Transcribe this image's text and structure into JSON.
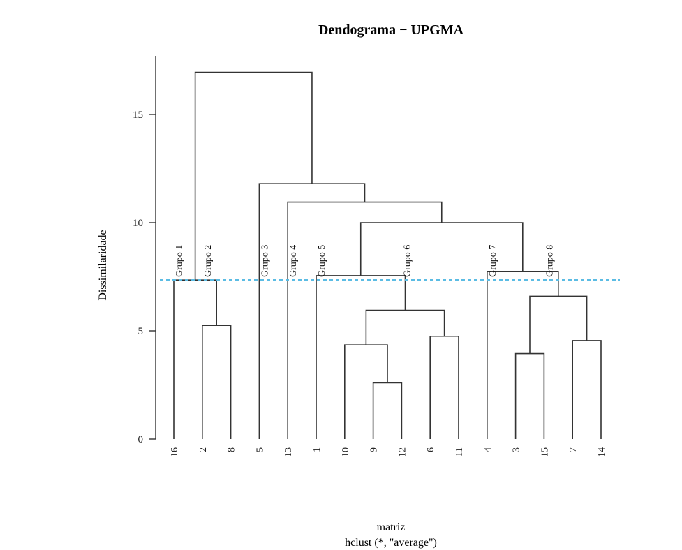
{
  "chart_data": {
    "type": "dendrogram",
    "title": "Dendograma − UPGMA",
    "ylabel": "Dissimilaridade",
    "xlabel": "matriz",
    "sub": "hclust (*, \"average\")",
    "ylim": [
      0,
      17
    ],
    "yticks": [
      0,
      5,
      10,
      15
    ],
    "leaves": [
      "16",
      "2",
      "8",
      "5",
      "13",
      "1",
      "10",
      "9",
      "12",
      "6",
      "11",
      "4",
      "3",
      "15",
      "7",
      "14"
    ],
    "merges": [
      {
        "left": "9",
        "right": "12",
        "height": 2.6
      },
      {
        "left": "3",
        "right": "15",
        "height": 3.95
      },
      {
        "left": "10",
        "right": "9+12",
        "height": 4.35
      },
      {
        "left": "7",
        "right": "14",
        "height": 4.55
      },
      {
        "left": "6",
        "right": "11",
        "height": 4.75
      },
      {
        "left": "2",
        "right": "8",
        "height": 5.25
      },
      {
        "left": "10+9+12",
        "right": "6+11",
        "height": 5.95
      },
      {
        "left": "3+15",
        "right": "7+14",
        "height": 6.6
      },
      {
        "left": "16",
        "right": "2+8",
        "height": 7.35
      },
      {
        "left": "1",
        "right": "10+9+12+6+11",
        "height": 7.55
      },
      {
        "left": "4",
        "right": "3+15+7+14",
        "height": 7.75
      },
      {
        "left": "1+10+9+12+6+11",
        "right": "4+3+15+7+14",
        "height": 10.0
      },
      {
        "left": "13",
        "right": "1+10+9+12+6+11+4+3+15+7+14",
        "height": 10.95
      },
      {
        "left": "5",
        "right": "13+1+10+9+12+6+11+4+3+15+7+14",
        "height": 11.8
      },
      {
        "left": "16+2+8",
        "right": "5+13+1+10+9+12+6+11+4+3+15+7+14",
        "height": 16.95
      }
    ],
    "cut_line": {
      "height": 7.35,
      "color": "#5bbce4"
    },
    "groups": [
      {
        "label": "Grupo 1",
        "leaf": "16"
      },
      {
        "label": "Grupo 2",
        "leaf": "2"
      },
      {
        "label": "Grupo 3",
        "leaf": "5"
      },
      {
        "label": "Grupo 4",
        "leaf": "13"
      },
      {
        "label": "Grupo 5",
        "leaf": "1"
      },
      {
        "label": "Grupo 6",
        "leaf": "12"
      },
      {
        "label": "Grupo 7",
        "leaf": "4"
      },
      {
        "label": "Grupo 8",
        "leaf": "15"
      }
    ],
    "line_color": "#333333"
  }
}
